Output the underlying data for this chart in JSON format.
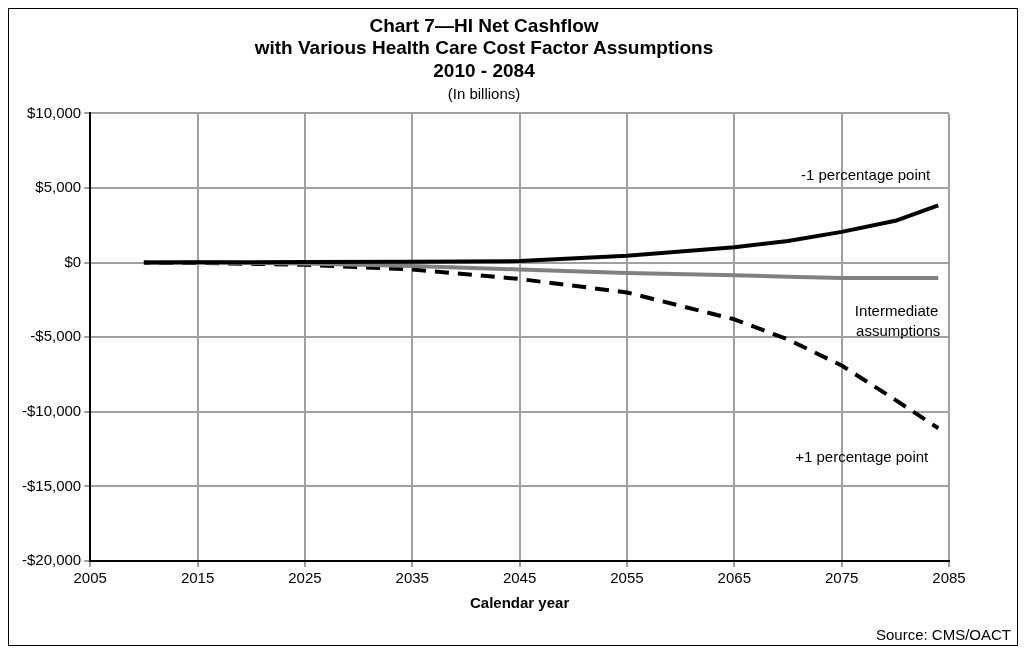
{
  "chart_data": {
    "type": "line",
    "title": "Chart 7—HI Net Cashflow\nwith Various Health Care Cost Factor Assumptions\n2010 - 2084",
    "subtitle": "(In billions)",
    "xlabel": "Calendar year",
    "annotations": [
      "Source: CMS/OACT"
    ],
    "x": [
      2010,
      2015,
      2025,
      2035,
      2045,
      2055,
      2065,
      2070,
      2075,
      2080,
      2084
    ],
    "series": [
      {
        "name": "-1 percentage point",
        "color": "#000000",
        "line_style": "solid",
        "values": [
          0,
          20,
          40,
          60,
          100,
          460,
          1030,
          1450,
          2060,
          2800,
          3830
        ]
      },
      {
        "name": "Intermediate assumptions",
        "color": "#808080",
        "line_style": "solid",
        "values": [
          0,
          0,
          -60,
          -230,
          -460,
          -700,
          -850,
          -950,
          -1040,
          -1040,
          -1040
        ]
      },
      {
        "name": "+1 percentage point",
        "color": "#000000",
        "line_style": "dashed",
        "values": [
          0,
          -20,
          -150,
          -460,
          -1100,
          -2000,
          -3800,
          -5150,
          -6900,
          -9200,
          -11100
        ]
      }
    ],
    "xlim": [
      2005,
      2085
    ],
    "xticks": [
      2005,
      2015,
      2025,
      2035,
      2045,
      2055,
      2065,
      2075,
      2085
    ],
    "ylim": [
      -20000,
      10000
    ],
    "yticks": [
      {
        "value": -20000,
        "label": "-$20,000"
      },
      {
        "value": -15000,
        "label": "-$15,000"
      },
      {
        "value": -10000,
        "label": "-$10,000"
      },
      {
        "value": -5000,
        "label": "-$5,000"
      },
      {
        "value": 0,
        "label": "$0"
      },
      {
        "value": 5000,
        "label": "$5,000"
      },
      {
        "value": 10000,
        "label": "$10,000"
      }
    ],
    "grid": true,
    "legend": false,
    "marker": "none"
  }
}
